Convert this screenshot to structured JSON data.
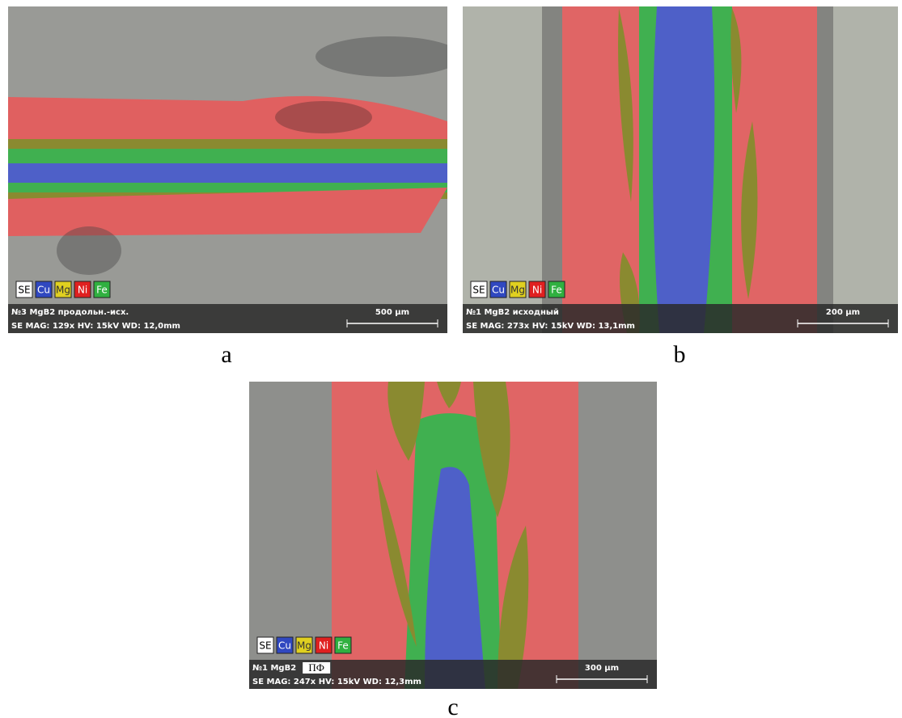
{
  "panels": [
    {
      "label": "a",
      "legend": [
        "SE",
        "Cu",
        "Mg",
        "Ni",
        "Fe"
      ],
      "info_line_1": "№3 MgB2 продольн.-исх.",
      "info_line_2": "SE  MAG: 129x  HV: 15kV  WD: 12,0mm",
      "scale_bar": "500 μm"
    },
    {
      "label": "b",
      "legend": [
        "SE",
        "Cu",
        "Mg",
        "Ni",
        "Fe"
      ],
      "info_line_1": "№1 MgB2 исходный",
      "info_line_2": "SE  MAG: 273x  HV: 15kV  WD: 13,1mm",
      "scale_bar": "200 μm"
    },
    {
      "label": "c",
      "legend": [
        "SE",
        "Cu",
        "Mg",
        "Ni",
        "Fe"
      ],
      "info_line_1": "№1 MgB2",
      "info_tag": "ПФ",
      "info_line_2": "SE  MAG: 247x  HV: 15kV  WD: 12,3mm",
      "scale_bar": "300 μm"
    }
  ]
}
